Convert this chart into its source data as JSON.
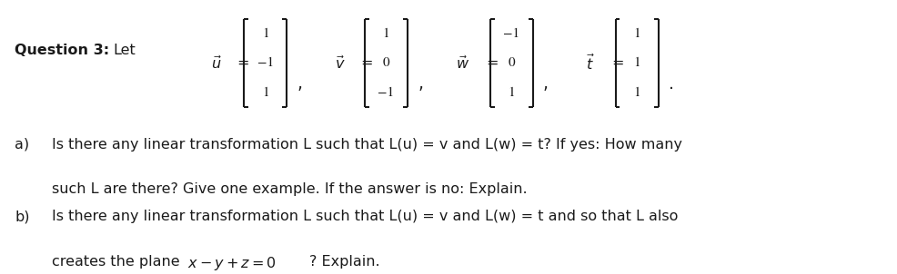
{
  "title_bold": "Question 3:",
  "title_normal": "Let",
  "vectors": {
    "u": [
      "1",
      "−1",
      "1"
    ],
    "v": [
      "1",
      "0",
      "−1"
    ],
    "w": [
      "−1",
      "0",
      "1"
    ],
    "t": [
      "1",
      "1",
      "1"
    ]
  },
  "label_a": "a)",
  "label_b": "b)",
  "line_a1": "Is there any linear transformation L such that L(u) = v and L(w) = t? If yes: How many",
  "line_a2": "such L are there? Give one example. If the answer is no: Explain.",
  "line_b1": "Is there any linear transformation L such that L(u) = v and L(w) = t and so that L also",
  "line_b2_pre": "creates the plane ",
  "line_b2_math": "x – y + z = 0",
  "line_b2_post": "? Explain.",
  "bg_color": "#ffffff",
  "text_color": "#1a1a1a",
  "font_size_main": 11.5,
  "font_size_matrix": 11.0
}
